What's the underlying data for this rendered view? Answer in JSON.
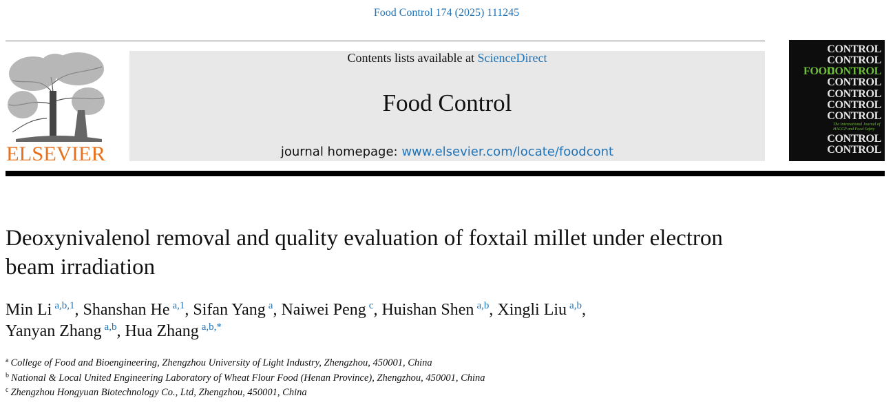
{
  "header": {
    "citation": "Food Control 174 (2025) 111245"
  },
  "publisher": {
    "logo_text": "ELSEVIER"
  },
  "banner": {
    "contents_prefix": "Contents lists available at",
    "contents_link": "ScienceDirect",
    "journal": "Food Control",
    "homepage_prefix": "journal homepage:",
    "homepage_link": "www.elsevier.com/locate/foodcont"
  },
  "cover": {
    "food": "FOOD",
    "word": "CONTROL",
    "subtitle": "The International Journal of HACCP and Food Safety"
  },
  "article": {
    "title": "Deoxynivalenol removal and quality evaluation of foxtail millet under electron beam irradiation",
    "separator": ",",
    "authors": [
      {
        "name": "Min Li",
        "affil": "a,b,1"
      },
      {
        "name": "Shanshan He",
        "affil": "a,1"
      },
      {
        "name": "Sifan Yang",
        "affil": "a"
      },
      {
        "name": "Naiwei Peng",
        "affil": "c"
      },
      {
        "name": "Huishan Shen",
        "affil": "a,b"
      },
      {
        "name": "Xingli Liu",
        "affil": "a,b"
      },
      {
        "name": "Yanyan Zhang",
        "affil": "a,b"
      },
      {
        "name": "Hua Zhang",
        "affil": "a,b,*"
      }
    ],
    "affiliations": [
      {
        "label": "a",
        "text": "College of Food and Bioengineering, Zhengzhou University of Light Industry, Zhengzhou, 450001, China"
      },
      {
        "label": "b",
        "text": "National & Local United Engineering Laboratory of Wheat Flour Food (Henan Province), Zhengzhou, 450001, China"
      },
      {
        "label": "c",
        "text": "Zhengzhou Hongyuan Biotechnology Co., Ltd, Zhengzhou, 450001, China"
      }
    ]
  }
}
